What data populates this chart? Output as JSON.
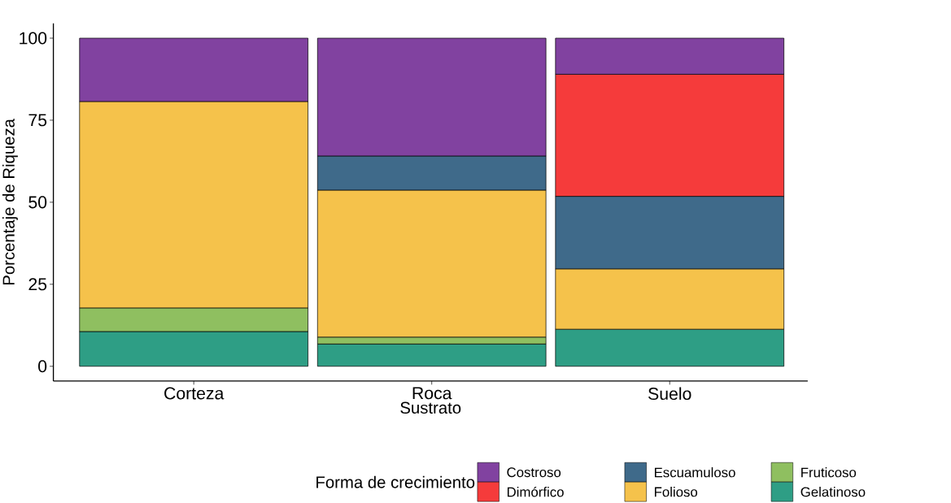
{
  "chart_data": {
    "type": "bar",
    "stacked": true,
    "xlabel": "Sustrato",
    "ylabel": "Porcentaje de Riqueza",
    "legend_title": "Forma de crecimiento",
    "legend": "bottom",
    "categories": [
      "Corteza",
      "Roca",
      "Suelo"
    ],
    "ylim": [
      0,
      100
    ],
    "yticks": [
      0,
      25,
      50,
      75,
      100
    ],
    "series": [
      {
        "name": "Gelatinoso",
        "color": "#2e9e85",
        "values": [
          10.6,
          6.8,
          11.3
        ]
      },
      {
        "name": "Fruticoso",
        "color": "#8fbf60",
        "values": [
          7.2,
          2.1,
          null
        ]
      },
      {
        "name": "Folioso",
        "color": "#f5c24b",
        "values": [
          62.9,
          44.8,
          18.4
        ]
      },
      {
        "name": "Escuamuloso",
        "color": "#3f6a8a",
        "values": [
          null,
          10.4,
          22.1
        ]
      },
      {
        "name": "Dimórfico",
        "color": "#f53b3b",
        "values": [
          null,
          null,
          37.2
        ]
      },
      {
        "name": "Costroso",
        "color": "#8142a0",
        "values": [
          19.3,
          35.9,
          11.0
        ]
      }
    ]
  }
}
